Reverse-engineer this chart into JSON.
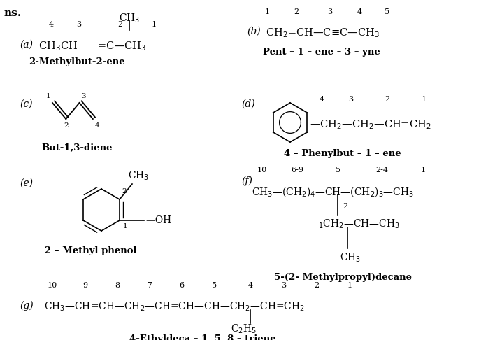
{
  "bg_color": "#ffffff",
  "figsize": [
    7.08,
    4.86
  ],
  "dpi": 100,
  "sections": {
    "a": {
      "label": "(a)",
      "formula": "CH$_3$CH  =C—CH$_3$",
      "name": "2-Methylbut-2-ene",
      "numbers": [
        "4",
        "3",
        "2",
        "1"
      ]
    },
    "b": {
      "label": "(b)",
      "formula": "CH$_2$=CH—C≡C—CH$_3$",
      "name": "Pent – 1 – ene – 3 – yne",
      "numbers": [
        "1",
        "2",
        "3",
        "4",
        "5"
      ]
    },
    "c_name": "But-1,3-diene",
    "d": {
      "label": "(d)",
      "chain": "—CH$_2$—CH$_2$—CH=CH$_2$",
      "name": "4 – Phenylbut – 1 – ene",
      "numbers": [
        "4",
        "3",
        "2",
        "1"
      ]
    },
    "e": {
      "label": "(e)",
      "name": "2 – Methyl phenol"
    },
    "f": {
      "label": "(f)",
      "line1": "CH$_3$—(CH$_2$)$_4$—CH—(CH$_2$)$_3$—CH$_3$",
      "line2": "$_1$CH$_2$—CH—CH$_3$",
      "line3": "CH$_3$",
      "nums_top": [
        "10",
        "6-9",
        "5",
        "2-4",
        "1"
      ],
      "num_side": "2",
      "name": "5-(2- Methylpropyl)decane"
    },
    "g": {
      "label": "(g)",
      "formula": "CH$_3$—CH=CH—CH$_2$—CH=CH—CH—CH$_2$—CH=CH$_2$",
      "sub": "C$_2$H$_5$",
      "nums": [
        "10",
        "9",
        "8",
        "7",
        "6",
        "5",
        "4",
        "3",
        "2",
        "1"
      ],
      "name": "4-Ethyldeca – 1, 5, 8 – triene"
    }
  }
}
